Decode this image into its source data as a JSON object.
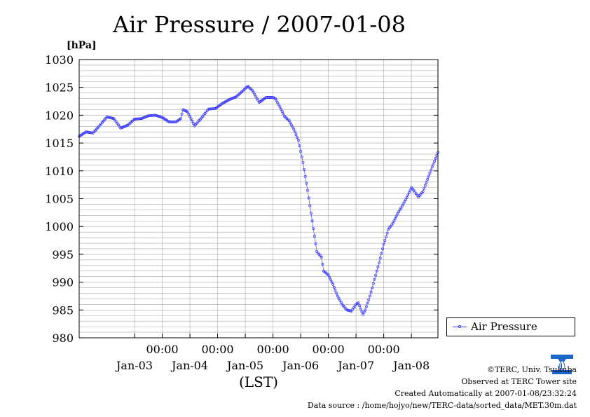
{
  "chart_data": {
    "type": "line",
    "title": "Air Pressure / 2007-01-08",
    "ylabel": "[hPa]",
    "xlabel": "(LST)",
    "ylim": [
      980,
      1030
    ],
    "yticks": [
      980,
      985,
      990,
      995,
      1000,
      1005,
      1010,
      1015,
      1020,
      1025,
      1030
    ],
    "xlim": [
      "2007-01-02T12:00",
      "2007-01-08T23:30"
    ],
    "xticks": [
      {
        "time": "2007-01-03T12:00",
        "day_label": "Jan-03"
      },
      {
        "time": "2007-01-04T00:00",
        "time_label": "00:00"
      },
      {
        "time": "2007-01-04T12:00",
        "day_label": "Jan-04"
      },
      {
        "time": "2007-01-05T00:00",
        "time_label": "00:00"
      },
      {
        "time": "2007-01-05T12:00",
        "day_label": "Jan-05"
      },
      {
        "time": "2007-01-06T00:00",
        "time_label": "00:00"
      },
      {
        "time": "2007-01-06T12:00",
        "day_label": "Jan-06"
      },
      {
        "time": "2007-01-07T00:00",
        "time_label": "00:00"
      },
      {
        "time": "2007-01-07T12:00",
        "day_label": "Jan-07"
      },
      {
        "time": "2007-01-08T00:00",
        "time_label": "00:00"
      },
      {
        "time": "2007-01-08T12:00",
        "day_label": "Jan-08"
      }
    ],
    "grid": true,
    "legend_position": "right",
    "series": [
      {
        "name": "Air Pressure",
        "color": "#3333ff",
        "points": [
          [
            "2007-01-02T12:00",
            1016.2
          ],
          [
            "2007-01-02T15:00",
            1017.0
          ],
          [
            "2007-01-02T18:00",
            1016.8
          ],
          [
            "2007-01-02T21:00",
            1018.2
          ],
          [
            "2007-01-03T00:00",
            1019.7
          ],
          [
            "2007-01-03T03:00",
            1019.4
          ],
          [
            "2007-01-03T06:00",
            1017.7
          ],
          [
            "2007-01-03T09:00",
            1018.2
          ],
          [
            "2007-01-03T12:00",
            1019.3
          ],
          [
            "2007-01-03T15:00",
            1019.4
          ],
          [
            "2007-01-03T18:00",
            1019.9
          ],
          [
            "2007-01-03T21:00",
            1020.0
          ],
          [
            "2007-01-04T00:00",
            1019.6
          ],
          [
            "2007-01-04T03:00",
            1018.8
          ],
          [
            "2007-01-04T06:00",
            1018.8
          ],
          [
            "2007-01-04T08:00",
            1019.4
          ],
          [
            "2007-01-04T09:00",
            1021.0
          ],
          [
            "2007-01-04T11:00",
            1020.6
          ],
          [
            "2007-01-04T14:00",
            1018.1
          ],
          [
            "2007-01-04T17:00",
            1019.5
          ],
          [
            "2007-01-04T20:00",
            1021.1
          ],
          [
            "2007-01-04T23:00",
            1021.2
          ],
          [
            "2007-01-05T02:00",
            1022.1
          ],
          [
            "2007-01-05T05:00",
            1022.8
          ],
          [
            "2007-01-05T08:00",
            1023.3
          ],
          [
            "2007-01-05T11:00",
            1024.4
          ],
          [
            "2007-01-05T13:00",
            1025.2
          ],
          [
            "2007-01-05T15:00",
            1024.5
          ],
          [
            "2007-01-05T18:00",
            1022.3
          ],
          [
            "2007-01-05T21:00",
            1023.2
          ],
          [
            "2007-01-06T00:00",
            1023.2
          ],
          [
            "2007-01-06T01:00",
            1023.0
          ],
          [
            "2007-01-06T03:00",
            1021.5
          ],
          [
            "2007-01-06T05:00",
            1019.8
          ],
          [
            "2007-01-06T07:00",
            1019.0
          ],
          [
            "2007-01-06T09:00",
            1017.5
          ],
          [
            "2007-01-06T11:00",
            1015.5
          ],
          [
            "2007-01-06T13:00",
            1011.5
          ],
          [
            "2007-01-06T15:00",
            1006.5
          ],
          [
            "2007-01-06T17:00",
            1001.0
          ],
          [
            "2007-01-06T19:00",
            995.5
          ],
          [
            "2007-01-06T21:00",
            994.5
          ],
          [
            "2007-01-06T22:00",
            992.0
          ],
          [
            "2007-01-07T00:00",
            991.3
          ],
          [
            "2007-01-07T02:00",
            989.6
          ],
          [
            "2007-01-07T04:00",
            987.5
          ],
          [
            "2007-01-07T06:00",
            986.0
          ],
          [
            "2007-01-07T08:00",
            985.0
          ],
          [
            "2007-01-07T10:00",
            984.8
          ],
          [
            "2007-01-07T12:00",
            986.0
          ],
          [
            "2007-01-07T13:00",
            986.3
          ],
          [
            "2007-01-07T14:00",
            985.2
          ],
          [
            "2007-01-07T15:00",
            984.2
          ],
          [
            "2007-01-07T16:00",
            985.0
          ],
          [
            "2007-01-07T18:00",
            987.5
          ],
          [
            "2007-01-07T20:00",
            990.5
          ],
          [
            "2007-01-07T22:00",
            993.5
          ],
          [
            "2007-01-08T00:00",
            996.8
          ],
          [
            "2007-01-08T02:00",
            999.5
          ],
          [
            "2007-01-08T04:00",
            1000.6
          ],
          [
            "2007-01-08T06:00",
            1002.3
          ],
          [
            "2007-01-08T08:00",
            1003.7
          ],
          [
            "2007-01-08T10:00",
            1005.2
          ],
          [
            "2007-01-08T12:00",
            1007.0
          ],
          [
            "2007-01-08T13:00",
            1006.5
          ],
          [
            "2007-01-08T15:00",
            1005.3
          ],
          [
            "2007-01-08T17:00",
            1006.3
          ],
          [
            "2007-01-08T19:00",
            1008.5
          ],
          [
            "2007-01-08T21:00",
            1010.7
          ],
          [
            "2007-01-08T23:30",
            1013.3
          ]
        ]
      }
    ]
  },
  "credits": {
    "copyright": "©TERC, Univ. Tsukuba",
    "observed": "Observed at TERC Tower site",
    "created": "Created Automatically at 2007-01-08/23:32:24",
    "source": "Data source : /home/hojyo/new/TERC-data/sorted_data/MET.30m.dat"
  },
  "logo": {
    "text": "TERC",
    "color": "#1e66c8"
  }
}
